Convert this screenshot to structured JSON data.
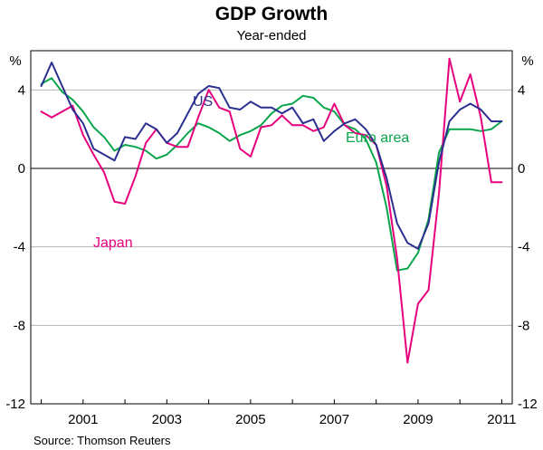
{
  "chart_data": {
    "type": "line",
    "title": "GDP Growth",
    "subtitle": "Year-ended",
    "ylabel_left": "%",
    "ylabel_right": "%",
    "ylim": [
      -12,
      6
    ],
    "yticks": [
      -12,
      -8,
      -4,
      0,
      4
    ],
    "xlim": [
      1999.75,
      2011.25
    ],
    "xticks": [
      "2001",
      "2003",
      "2005",
      "2007",
      "2009",
      "2011"
    ],
    "source": "Source: Thomson Reuters",
    "series": [
      {
        "name": "US",
        "label": "US",
        "color": "#2b2f8f",
        "x": [
          2000.0,
          2000.25,
          2000.5,
          2000.75,
          2001.0,
          2001.25,
          2001.5,
          2001.75,
          2002.0,
          2002.25,
          2002.5,
          2002.75,
          2003.0,
          2003.25,
          2003.5,
          2003.75,
          2004.0,
          2004.25,
          2004.5,
          2004.75,
          2005.0,
          2005.25,
          2005.5,
          2005.75,
          2006.0,
          2006.25,
          2006.5,
          2006.75,
          2007.0,
          2007.25,
          2007.5,
          2007.75,
          2008.0,
          2008.25,
          2008.5,
          2008.75,
          2009.0,
          2009.25,
          2009.5,
          2009.75,
          2010.0,
          2010.25,
          2010.5,
          2010.75,
          2011.0
        ],
        "values": [
          4.2,
          5.4,
          4.2,
          3.0,
          2.3,
          1.0,
          0.7,
          0.4,
          1.6,
          1.5,
          2.3,
          2.0,
          1.3,
          1.8,
          2.8,
          3.8,
          4.2,
          4.1,
          3.1,
          3.0,
          3.4,
          3.1,
          3.1,
          2.8,
          3.1,
          2.3,
          2.5,
          1.4,
          1.9,
          2.3,
          2.5,
          2.0,
          1.2,
          -0.5,
          -2.8,
          -3.8,
          -4.1,
          -2.8,
          0.3,
          2.4,
          3.0,
          3.3,
          3.0,
          2.4,
          2.4
        ]
      },
      {
        "name": "Euro area",
        "label": "Euro area",
        "color": "#0aa54b",
        "x": [
          2000.0,
          2000.25,
          2000.5,
          2000.75,
          2001.0,
          2001.25,
          2001.5,
          2001.75,
          2002.0,
          2002.25,
          2002.5,
          2002.75,
          2003.0,
          2003.25,
          2003.5,
          2003.75,
          2004.0,
          2004.25,
          2004.5,
          2004.75,
          2005.0,
          2005.25,
          2005.5,
          2005.75,
          2006.0,
          2006.25,
          2006.5,
          2006.75,
          2007.0,
          2007.25,
          2007.5,
          2007.75,
          2008.0,
          2008.25,
          2008.5,
          2008.75,
          2009.0,
          2009.25,
          2009.5,
          2009.75,
          2010.0,
          2010.25,
          2010.5,
          2010.75,
          2011.0
        ],
        "values": [
          4.3,
          4.6,
          3.9,
          3.5,
          2.9,
          2.1,
          1.6,
          0.9,
          1.2,
          1.1,
          0.9,
          0.5,
          0.7,
          1.2,
          1.8,
          2.3,
          2.1,
          1.8,
          1.4,
          1.7,
          1.9,
          2.2,
          2.8,
          3.2,
          3.3,
          3.7,
          3.6,
          3.1,
          2.9,
          2.2,
          2.0,
          1.5,
          0.3,
          -2.0,
          -5.2,
          -5.1,
          -4.3,
          -2.6,
          0.8,
          2.0,
          2.0,
          2.0,
          1.9,
          2.0,
          2.4
        ]
      },
      {
        "name": "Japan",
        "label": "Japan",
        "color": "#e6007e",
        "x": [
          2000.0,
          2000.25,
          2000.5,
          2000.75,
          2001.0,
          2001.25,
          2001.5,
          2001.75,
          2002.0,
          2002.25,
          2002.5,
          2002.75,
          2003.0,
          2003.25,
          2003.5,
          2003.75,
          2004.0,
          2004.25,
          2004.5,
          2004.75,
          2005.0,
          2005.25,
          2005.5,
          2005.75,
          2006.0,
          2006.25,
          2006.5,
          2006.75,
          2007.0,
          2007.25,
          2007.5,
          2007.75,
          2008.0,
          2008.25,
          2008.5,
          2008.75,
          2009.0,
          2009.25,
          2009.5,
          2009.75,
          2010.0,
          2010.25,
          2010.5,
          2010.75,
          2011.0
        ],
        "values": [
          2.9,
          2.6,
          2.9,
          3.2,
          1.7,
          0.7,
          -0.2,
          -1.7,
          -1.8,
          -0.4,
          1.3,
          2.0,
          1.3,
          1.1,
          1.1,
          2.6,
          4.0,
          3.1,
          2.9,
          1.0,
          0.6,
          2.1,
          2.2,
          2.7,
          2.2,
          2.2,
          1.9,
          2.1,
          3.3,
          2.2,
          1.8,
          1.7,
          1.2,
          -0.9,
          -4.6,
          -9.9,
          -6.9,
          -6.2,
          -1.3,
          5.6,
          3.4,
          4.8,
          2.6,
          -0.7,
          -0.7
        ]
      }
    ],
    "series_labels": [
      {
        "series": "US",
        "text": "US"
      },
      {
        "series": "Euro area",
        "text": "Euro area"
      },
      {
        "series": "Japan",
        "text": "Japan"
      }
    ]
  }
}
